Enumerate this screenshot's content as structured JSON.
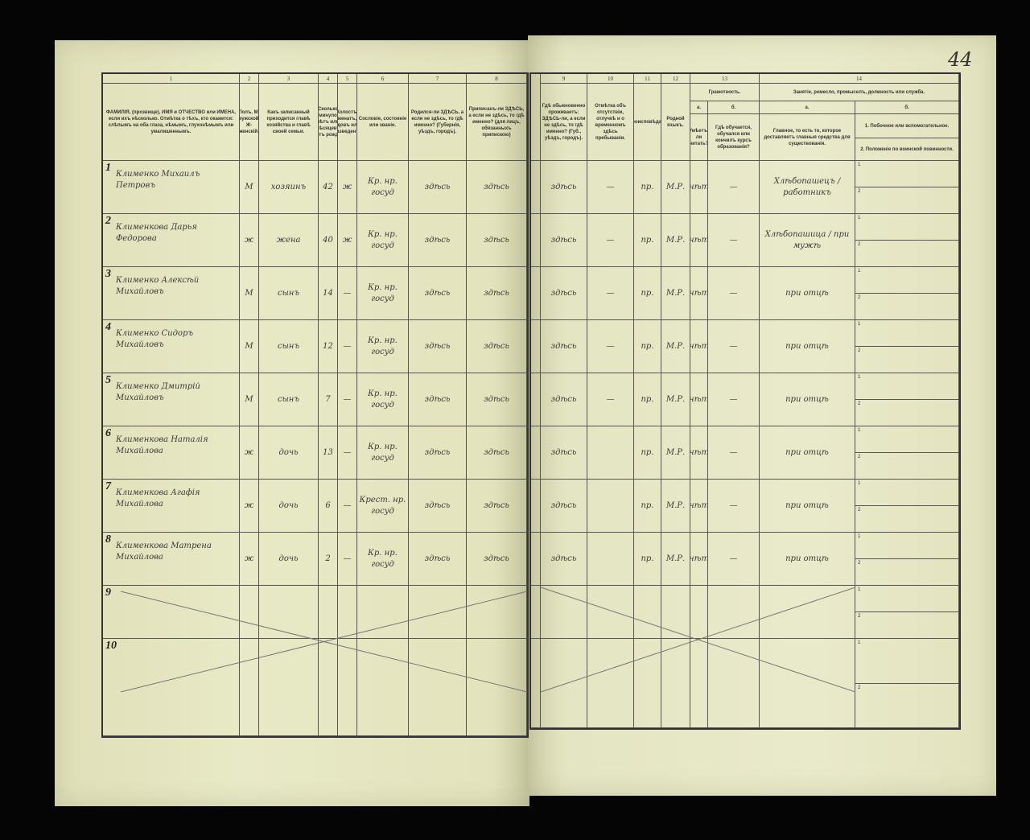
{
  "page_number": "44",
  "left": {
    "col_numbers": [
      "1",
      "2",
      "3",
      "4",
      "5",
      "6",
      "7",
      "8"
    ],
    "headers": [
      "ФАМИЛІЯ, (прозвище), ИМЯ и ОТЧЕСТВО или ИМЕНА, если ихъ нѣсколько. Отмѣтка о тѣхъ, кто окажется: слѣпымъ на оба глаза, нѣмымъ, глухонѣмымъ или умалишеннымъ.",
      "Полъ. М-мужской. Ж-женскій.",
      "Какъ записанный приходится главѣ хозяйства и главѣ своей семьи.",
      "Сколько минуло лѣтъ или мѣсяцевъ отъ рожд.",
      "Холостъ, женатъ, вдовъ или разведенъ.",
      "Сословіе, состояніе или званіе.",
      "Родился-ли ЗДѢСЬ, а если не здѣсь, то гдѣ именно? (Губернія, уѣздъ, городъ).",
      "Приписанъ-ли ЗДѢСЬ, а если не здѣсь, то гдѣ именно? (для лицъ, обязанныхъ припискою)"
    ],
    "rows": [
      {
        "n": "1",
        "name": "Клименко Михаилъ Петровъ",
        "sex": "М",
        "rel": "хозяинъ",
        "age": "42",
        "mar": "ж",
        "estate": "Кр. нр. госуд",
        "born": "здѣсь",
        "reg": "здѣсь"
      },
      {
        "n": "2",
        "name": "Клименкова Дарья Федорова",
        "sex": "ж",
        "rel": "жена",
        "age": "40",
        "mar": "ж",
        "estate": "Кр. нр. госуд",
        "born": "здѣсь",
        "reg": "здѣсь"
      },
      {
        "n": "3",
        "name": "Клименко Алексѣй Михайловъ",
        "sex": "М",
        "rel": "сынъ",
        "age": "14",
        "mar": "—",
        "estate": "Кр. нр. госуд",
        "born": "здѣсь",
        "reg": "здѣсь"
      },
      {
        "n": "4",
        "name": "Клименко Сидоръ Михайловъ",
        "sex": "М",
        "rel": "сынъ",
        "age": "12",
        "mar": "—",
        "estate": "Кр. нр. госуд",
        "born": "здѣсь",
        "reg": "здѣсь"
      },
      {
        "n": "5",
        "name": "Клименко Дмитрій Михайловъ",
        "sex": "М",
        "rel": "сынъ",
        "age": "7",
        "mar": "—",
        "estate": "Кр. нр. госуд",
        "born": "здѣсь",
        "reg": "здѣсь"
      },
      {
        "n": "6",
        "name": "Клименкова Наталія Михайлова",
        "sex": "ж",
        "rel": "дочь",
        "age": "13",
        "mar": "—",
        "estate": "Кр. нр. госуд",
        "born": "здѣсь",
        "reg": "здѣсь"
      },
      {
        "n": "7",
        "name": "Клименкова Агафія Михайлова",
        "sex": "ж",
        "rel": "дочь",
        "age": "6",
        "mar": "—",
        "estate": "Крест. нр. госуд",
        "born": "здѣсь",
        "reg": "здѣсь"
      },
      {
        "n": "8",
        "name": "Клименкова Матрена Михайлова",
        "sex": "ж",
        "rel": "дочь",
        "age": "2",
        "mar": "—",
        "estate": "Кр. нр. госуд",
        "born": "здѣсь",
        "reg": "здѣсь"
      },
      {
        "n": "9"
      },
      {
        "n": "10"
      }
    ]
  },
  "right": {
    "col_numbers": [
      "9",
      "10",
      "11",
      "12",
      "13",
      "14"
    ],
    "headers": {
      "c9": "Гдѣ обыкновенно проживаетъ: ЗДѢСЬ-ли, а если не здѣсь, то гдѣ именно? (Губ., уѣздъ, городъ).",
      "c10": "Отмѣтка объ отсутствіи, отлучкѣ и о временномъ здѣсь пребываніи.",
      "c11": "Вѣроисповѣданіе.",
      "c12": "Родной языкъ.",
      "c13": "Грамотность.",
      "c13a_letter": "а.",
      "c13b_letter": "б.",
      "c13a": "Умѣетъ-ли читать?",
      "c13b": "Гдѣ обучается, обучался или кончилъ курсъ образованія?",
      "c14": "Занятіе, ремесло, промыселъ, должность или служба.",
      "c14a_letter": "а.",
      "c14b_letter": "б.",
      "c14a": "Главное, то есть то, которое доставляетъ главныя средства для существованія.",
      "c14b1": "1. Побочное или вспомогательное.",
      "c14b2": "2. Положеніе по воинской повинности."
    },
    "sub_labels": [
      "1",
      "2"
    ],
    "rows": [
      {
        "res": "здѣсь",
        "abs": "—",
        "rel": "пр.",
        "lang": "М.Р.",
        "lit": "нѣт",
        "school": "—",
        "occ": "Хлѣбопашецъ / работникъ"
      },
      {
        "res": "здѣсь",
        "abs": "—",
        "rel": "пр.",
        "lang": "М.Р.",
        "lit": "нѣт",
        "school": "—",
        "occ": "Хлѣбопашица / при мужѣ"
      },
      {
        "res": "здѣсь",
        "abs": "—",
        "rel": "пр.",
        "lang": "М.Р.",
        "lit": "нѣт",
        "school": "—",
        "occ": "при отцѣ"
      },
      {
        "res": "здѣсь",
        "abs": "—",
        "rel": "пр.",
        "lang": "М.Р.",
        "lit": "нѣт",
        "school": "—",
        "occ": "при отцѣ"
      },
      {
        "res": "здѣсь",
        "abs": "—",
        "rel": "пр.",
        "lang": "М.Р.",
        "lit": "нѣт",
        "school": "—",
        "occ": "при отцѣ"
      },
      {
        "res": "здѣсь",
        "abs": "",
        "rel": "пр.",
        "lang": "М.Р.",
        "lit": "нѣт",
        "school": "—",
        "occ": "при отцѣ"
      },
      {
        "res": "здѣсь",
        "abs": "",
        "rel": "пр.",
        "lang": "М.Р.",
        "lit": "нѣт",
        "school": "—",
        "occ": "при отцѣ"
      },
      {
        "res": "здѣсь",
        "abs": "",
        "rel": "пр.",
        "lang": "М.Р.",
        "lit": "нѣт",
        "school": "—",
        "occ": "при отцѣ"
      },
      {},
      {}
    ]
  }
}
